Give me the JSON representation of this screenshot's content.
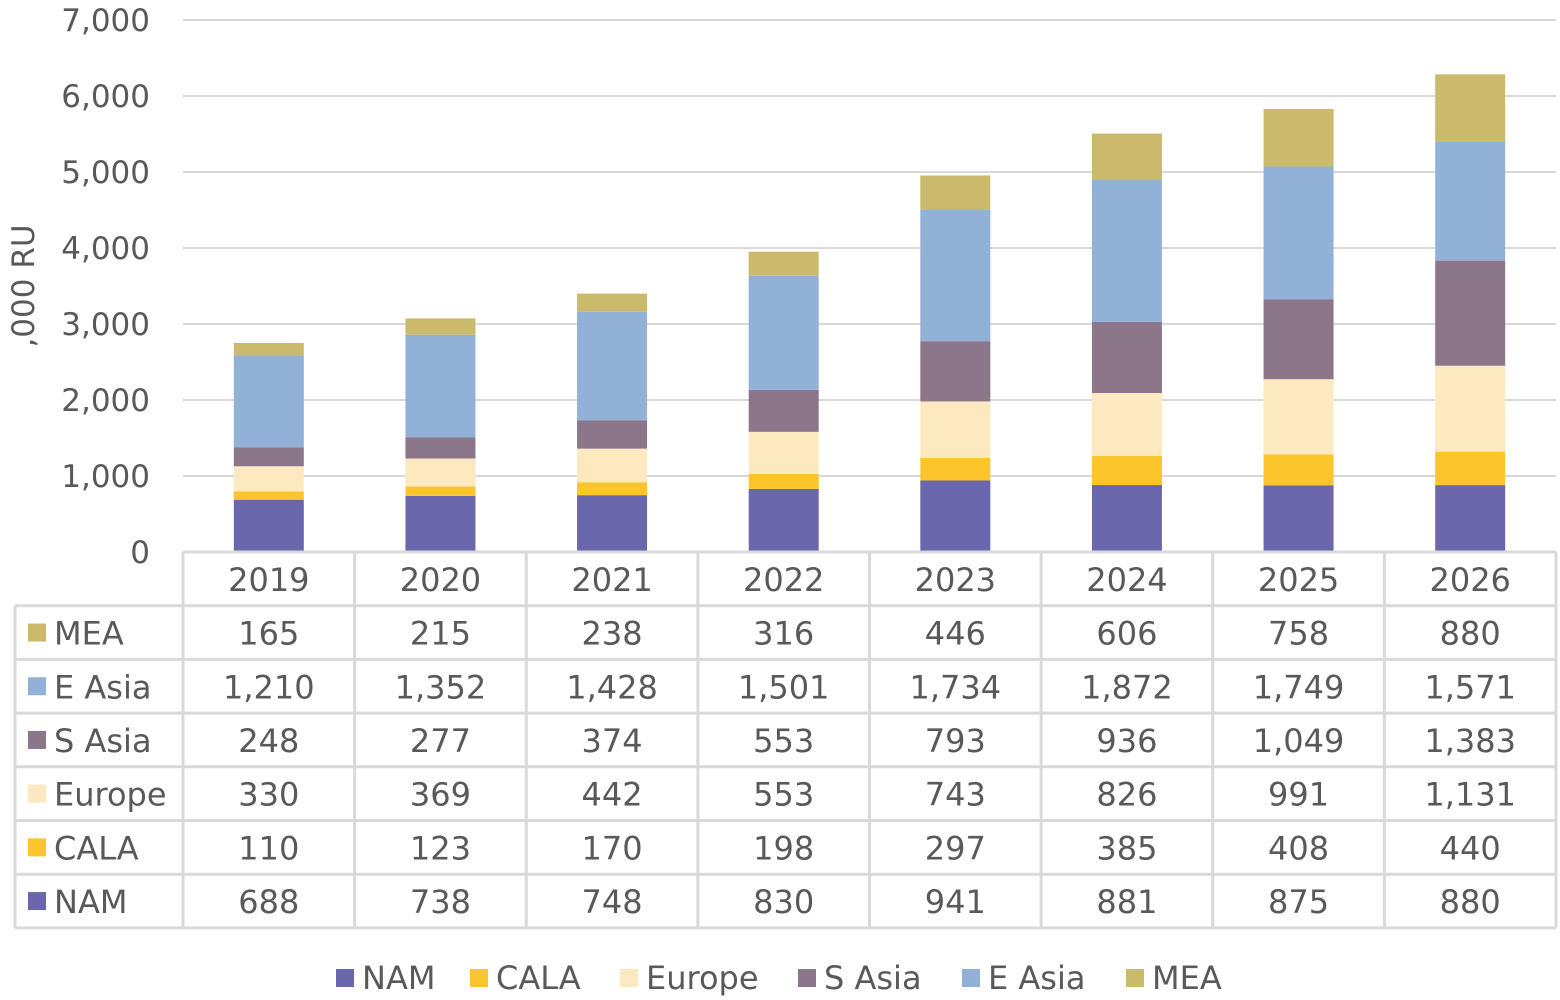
{
  "chart_data": {
    "type": "bar",
    "stacked": true,
    "title": "",
    "xlabel": "",
    "ylabel": ",000 RU",
    "ylim": [
      0,
      7000
    ],
    "yticks": [
      0,
      1000,
      2000,
      3000,
      4000,
      5000,
      6000,
      7000
    ],
    "ytick_labels": [
      "0",
      "1,000",
      "2,000",
      "3,000",
      "4,000",
      "5,000",
      "6,000",
      "7,000"
    ],
    "grid": true,
    "legend_position": "bottom",
    "data_table": true,
    "categories": [
      "2019",
      "2020",
      "2021",
      "2022",
      "2023",
      "2024",
      "2025",
      "2026"
    ],
    "series": [
      {
        "name": "NAM",
        "color": "#6B67AC",
        "values": [
          688,
          738,
          748,
          830,
          941,
          881,
          875,
          880
        ],
        "labels": [
          "688",
          "738",
          "748",
          "830",
          "941",
          "881",
          "875",
          "880"
        ]
      },
      {
        "name": "CALA",
        "color": "#FCC52C",
        "values": [
          110,
          123,
          170,
          198,
          297,
          385,
          408,
          440
        ],
        "labels": [
          "110",
          "123",
          "170",
          "198",
          "297",
          "385",
          "408",
          "440"
        ]
      },
      {
        "name": "Europe",
        "color": "#FDE9BF",
        "values": [
          330,
          369,
          442,
          553,
          743,
          826,
          991,
          1131
        ],
        "labels": [
          "330",
          "369",
          "442",
          "553",
          "743",
          "826",
          "991",
          "1,131"
        ]
      },
      {
        "name": "S Asia",
        "color": "#8C7689",
        "values": [
          248,
          277,
          374,
          553,
          793,
          936,
          1049,
          1383
        ],
        "labels": [
          "248",
          "277",
          "374",
          "553",
          "793",
          "936",
          "1,049",
          "1,383"
        ]
      },
      {
        "name": "E Asia",
        "color": "#92B1D6",
        "values": [
          1210,
          1352,
          1428,
          1501,
          1734,
          1872,
          1749,
          1571
        ],
        "labels": [
          "1,210",
          "1,352",
          "1,428",
          "1,501",
          "1,734",
          "1,872",
          "1,749",
          "1,571"
        ]
      },
      {
        "name": "MEA",
        "color": "#CBBA6C",
        "values": [
          165,
          215,
          238,
          316,
          446,
          606,
          758,
          880
        ],
        "labels": [
          "165",
          "215",
          "238",
          "316",
          "446",
          "606",
          "758",
          "880"
        ]
      }
    ]
  }
}
